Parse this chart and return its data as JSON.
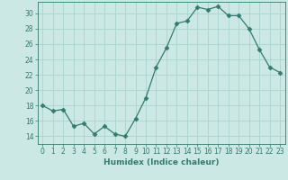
{
  "x": [
    0,
    1,
    2,
    3,
    4,
    5,
    6,
    7,
    8,
    9,
    10,
    11,
    12,
    13,
    14,
    15,
    16,
    17,
    18,
    19,
    20,
    21,
    22,
    23
  ],
  "y": [
    18,
    17.3,
    17.5,
    15.3,
    15.7,
    14.3,
    15.3,
    14.3,
    14.0,
    16.3,
    19.0,
    23.0,
    25.5,
    28.7,
    29.0,
    30.8,
    30.5,
    30.9,
    29.7,
    29.7,
    28.0,
    25.3,
    23.0,
    22.3
  ],
  "line_color": "#2e7d6e",
  "marker": "D",
  "marker_size": 2.5,
  "bg_color": "#cce8e5",
  "grid_color": "#a8d4d0",
  "xlabel": "Humidex (Indice chaleur)",
  "xlim": [
    -0.5,
    23.5
  ],
  "ylim": [
    13.0,
    31.5
  ],
  "yticks": [
    14,
    16,
    18,
    20,
    22,
    24,
    26,
    28,
    30
  ],
  "xticks": [
    0,
    1,
    2,
    3,
    4,
    5,
    6,
    7,
    8,
    9,
    10,
    11,
    12,
    13,
    14,
    15,
    16,
    17,
    18,
    19,
    20,
    21,
    22,
    23
  ],
  "label_fontsize": 6.5,
  "tick_fontsize": 5.5
}
